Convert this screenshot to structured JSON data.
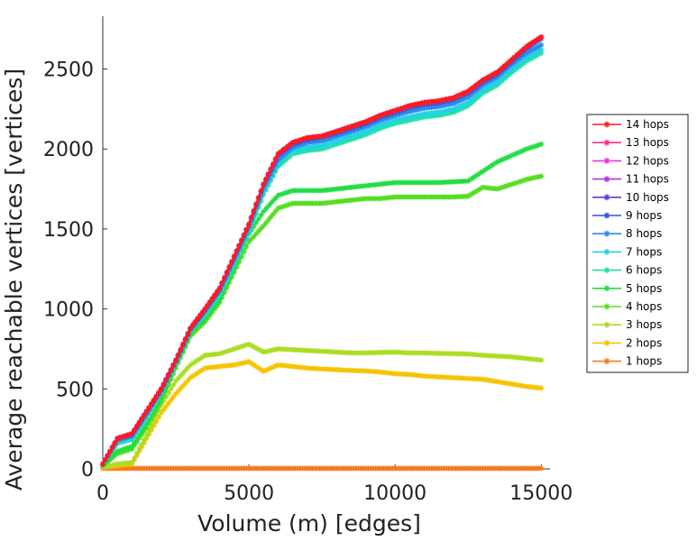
{
  "chart_data": {
    "type": "line",
    "title": "",
    "xlabel": "Volume (m) [edges]",
    "ylabel": "Average reachable vertices [vertices]",
    "xlim": [
      0,
      15300
    ],
    "ylim": [
      0,
      2830
    ],
    "xticks": [
      0,
      5000,
      10000,
      15000
    ],
    "yticks": [
      0,
      500,
      1000,
      1500,
      2000,
      2500
    ],
    "grid": false,
    "legend_position": "right",
    "marker": "asterisk",
    "x": [
      0,
      500,
      1000,
      1500,
      2000,
      2500,
      3000,
      3500,
      4000,
      4500,
      5000,
      5500,
      6000,
      6500,
      7000,
      7500,
      8000,
      8500,
      9000,
      9500,
      10000,
      10500,
      11000,
      11500,
      12000,
      12500,
      13000,
      13500,
      14000,
      14500,
      15000
    ],
    "series": [
      {
        "name": "14 hops",
        "color": "#ff1a1a",
        "values": [
          30,
          190,
          220,
          360,
          500,
          680,
          880,
          1000,
          1130,
          1330,
          1530,
          1780,
          1970,
          2040,
          2070,
          2080,
          2110,
          2140,
          2170,
          2210,
          2240,
          2270,
          2290,
          2300,
          2320,
          2360,
          2430,
          2480,
          2560,
          2640,
          2700
        ]
      },
      {
        "name": "13 hops",
        "color": "#ff2a8a",
        "values": [
          30,
          190,
          220,
          360,
          500,
          680,
          880,
          1000,
          1130,
          1330,
          1530,
          1780,
          1970,
          2040,
          2070,
          2080,
          2110,
          2140,
          2170,
          2210,
          2240,
          2270,
          2290,
          2300,
          2320,
          2360,
          2430,
          2480,
          2560,
          2640,
          2700
        ]
      },
      {
        "name": "12 hops",
        "color": "#ee33dd",
        "values": [
          30,
          190,
          220,
          360,
          500,
          680,
          880,
          1000,
          1130,
          1330,
          1530,
          1780,
          1970,
          2040,
          2070,
          2080,
          2110,
          2140,
          2170,
          2210,
          2240,
          2270,
          2290,
          2300,
          2320,
          2360,
          2430,
          2480,
          2560,
          2640,
          2700
        ]
      },
      {
        "name": "11 hops",
        "color": "#aa33ee",
        "values": [
          30,
          190,
          220,
          360,
          500,
          680,
          880,
          1000,
          1130,
          1330,
          1530,
          1780,
          1970,
          2040,
          2070,
          2080,
          2110,
          2140,
          2170,
          2210,
          2240,
          2270,
          2290,
          2300,
          2320,
          2360,
          2430,
          2480,
          2560,
          2640,
          2700
        ]
      },
      {
        "name": "10 hops",
        "color": "#6633ee",
        "values": [
          30,
          190,
          220,
          360,
          500,
          680,
          880,
          1000,
          1130,
          1330,
          1530,
          1780,
          1970,
          2040,
          2070,
          2080,
          2110,
          2140,
          2170,
          2210,
          2240,
          2270,
          2290,
          2300,
          2320,
          2360,
          2430,
          2480,
          2560,
          2640,
          2700
        ]
      },
      {
        "name": "9 hops",
        "color": "#2f4fe8",
        "values": [
          30,
          190,
          215,
          355,
          495,
          675,
          875,
          995,
          1125,
          1325,
          1525,
          1775,
          1960,
          2030,
          2060,
          2075,
          2100,
          2130,
          2160,
          2200,
          2230,
          2260,
          2280,
          2290,
          2310,
          2350,
          2420,
          2470,
          2550,
          2630,
          2690
        ]
      },
      {
        "name": "8 hops",
        "color": "#2a8ae8",
        "values": [
          30,
          180,
          205,
          345,
          490,
          670,
          870,
          985,
          1115,
          1310,
          1510,
          1755,
          1930,
          2010,
          2040,
          2050,
          2080,
          2110,
          2140,
          2180,
          2210,
          2235,
          2255,
          2265,
          2285,
          2325,
          2400,
          2450,
          2530,
          2600,
          2650
        ]
      },
      {
        "name": "7 hops",
        "color": "#22d2e6",
        "values": [
          30,
          170,
          195,
          335,
          485,
          665,
          865,
          975,
          1105,
          1295,
          1495,
          1735,
          1910,
          1990,
          2010,
          2020,
          2050,
          2080,
          2110,
          2150,
          2180,
          2200,
          2220,
          2230,
          2250,
          2290,
          2370,
          2420,
          2500,
          2570,
          2620
        ]
      },
      {
        "name": "6 hops",
        "color": "#22e0a8",
        "values": [
          30,
          160,
          185,
          320,
          480,
          660,
          860,
          965,
          1090,
          1275,
          1475,
          1715,
          1890,
          1970,
          1990,
          2000,
          2030,
          2060,
          2090,
          2130,
          2160,
          2180,
          2200,
          2210,
          2230,
          2270,
          2350,
          2400,
          2480,
          2550,
          2600
        ]
      },
      {
        "name": "5 hops",
        "color": "#22dd44",
        "values": [
          20,
          110,
          140,
          280,
          440,
          650,
          850,
          940,
          1060,
          1260,
          1470,
          1610,
          1710,
          1740,
          1740,
          1740,
          1750,
          1760,
          1770,
          1780,
          1790,
          1790,
          1790,
          1790,
          1795,
          1800,
          1860,
          1920,
          1960,
          2000,
          2030
        ]
      },
      {
        "name": "4 hops",
        "color": "#55dd22",
        "values": [
          20,
          95,
          125,
          260,
          420,
          630,
          830,
          920,
          1040,
          1230,
          1420,
          1520,
          1630,
          1660,
          1660,
          1660,
          1670,
          1680,
          1690,
          1690,
          1700,
          1700,
          1700,
          1700,
          1700,
          1705,
          1760,
          1750,
          1780,
          1810,
          1830
        ]
      },
      {
        "name": "3 hops",
        "color": "#aadd22",
        "values": [
          10,
          30,
          40,
          210,
          400,
          550,
          650,
          710,
          720,
          750,
          780,
          730,
          750,
          745,
          740,
          735,
          730,
          725,
          725,
          728,
          730,
          725,
          725,
          722,
          720,
          718,
          710,
          705,
          700,
          690,
          680
        ]
      },
      {
        "name": "2 hops",
        "color": "#f5c400",
        "values": [
          10,
          20,
          30,
          190,
          350,
          470,
          570,
          630,
          640,
          650,
          670,
          610,
          650,
          640,
          630,
          625,
          620,
          615,
          612,
          605,
          595,
          590,
          580,
          575,
          570,
          565,
          560,
          545,
          530,
          515,
          505
        ]
      },
      {
        "name": "1 hops",
        "color": "#f57a1e",
        "values": [
          3,
          3,
          3,
          3,
          3,
          3,
          3,
          3,
          3,
          3,
          3,
          3,
          3,
          3,
          3,
          3,
          3,
          3,
          3,
          3,
          3,
          3,
          3,
          3,
          3,
          3,
          3,
          3,
          3,
          3,
          3
        ]
      }
    ]
  }
}
